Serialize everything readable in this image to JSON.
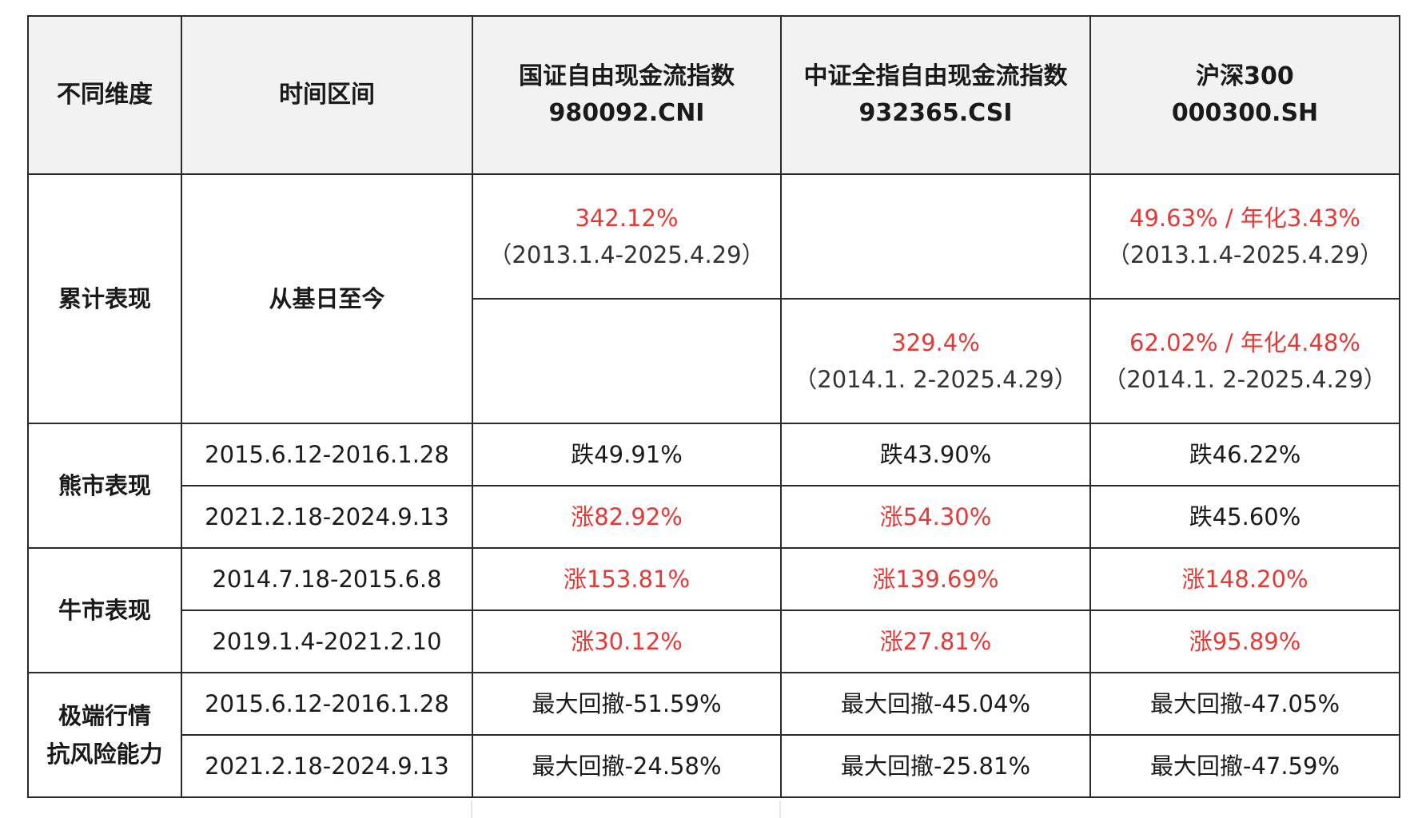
{
  "header": {
    "col1": "不同维度",
    "col2": "时间区间",
    "col3_line1": "国证自由现金流指数",
    "col3_line2": "980092.CNI",
    "col4_line1": "中证全指自由现金流指数",
    "col4_line2": "932365.CSI",
    "col5_line1": "沪深300",
    "col5_line2": "000300.SH"
  },
  "cumulative": {
    "dimension": "累计表现",
    "period": "从基日至今",
    "cni_value": "342.12%",
    "cni_range": "（2013.1.4-2025.4.29）",
    "hs300_a_value": "49.63% / 年化3.43%",
    "hs300_a_range": "（2013.1.4-2025.4.29）",
    "csi_value": "329.4%",
    "csi_range": "（2014.1. 2-2025.4.29）",
    "hs300_b_value": "62.02% / 年化4.48%",
    "hs300_b_range": "（2014.1. 2-2025.4.29）"
  },
  "bear": {
    "dimension": "熊市表现",
    "rows": [
      {
        "period": "2015.6.12-2016.1.28",
        "cni": "跌49.91%",
        "csi": "跌43.90%",
        "hs300": "跌46.22%"
      },
      {
        "period": "2021.2.18-2024.9.13",
        "cni": "涨82.92%",
        "csi": "涨54.30%",
        "hs300": "跌45.60%"
      }
    ]
  },
  "bull": {
    "dimension": "牛市表现",
    "rows": [
      {
        "period": "2014.7.18-2015.6.8",
        "cni": "涨153.81%",
        "csi": "涨139.69%",
        "hs300": "涨148.20%"
      },
      {
        "period": "2019.1.4-2021.2.10",
        "cni": "涨30.12%",
        "csi": "涨27.81%",
        "hs300": "涨95.89%"
      }
    ]
  },
  "extreme": {
    "dimension_line1": "极端行情",
    "dimension_line2": "抗风险能力",
    "rows": [
      {
        "period": "2015.6.12-2016.1.28",
        "cni": "最大回撤-51.59%",
        "csi": "最大回撤-45.04%",
        "hs300": "最大回撤-47.05%"
      },
      {
        "period": "2021.2.18-2024.9.13",
        "cni": "最大回撤-24.58%",
        "csi": "最大回撤-25.81%",
        "hs300": "最大回撤-47.59%"
      }
    ]
  },
  "colors": {
    "positive": "#e53935",
    "text": "#1a1a1a",
    "header_bg": "#f2f2f2",
    "border": "#2a2a2a"
  }
}
